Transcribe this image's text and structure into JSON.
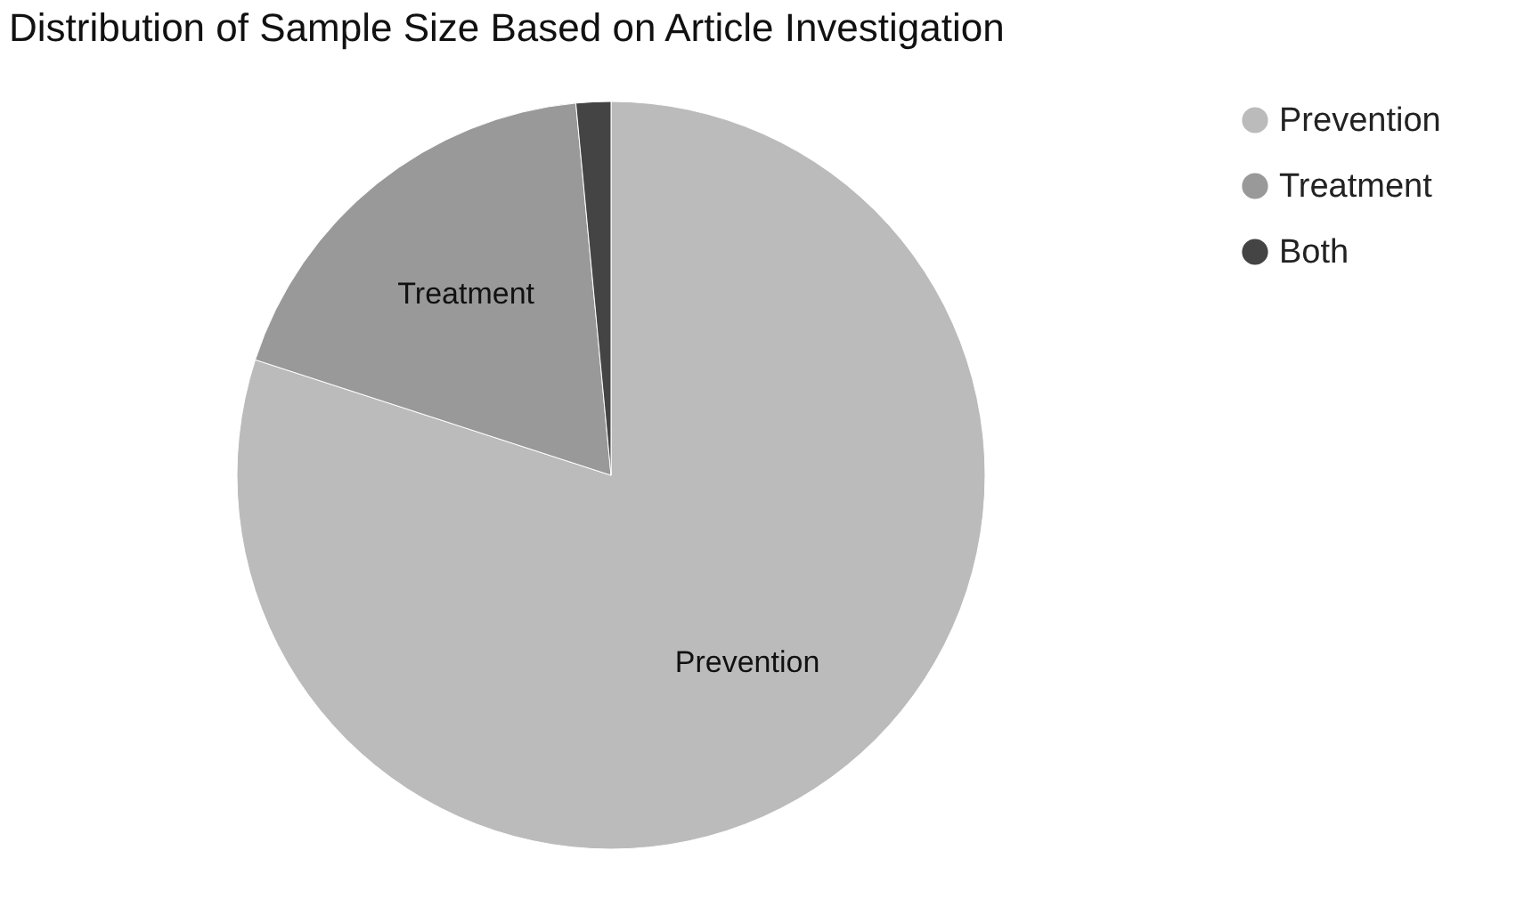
{
  "chart_data": {
    "type": "pie",
    "title": "Distribution of Sample Size Based on Article Investigation",
    "categories": [
      "Prevention",
      "Treatment",
      "Both"
    ],
    "values": [
      80,
      18.5,
      1.5
    ],
    "colors": [
      "#bbbbbb",
      "#999999",
      "#444444"
    ],
    "value_labels": [
      "Prevention",
      "Treatment",
      null
    ],
    "legend": "top right"
  }
}
